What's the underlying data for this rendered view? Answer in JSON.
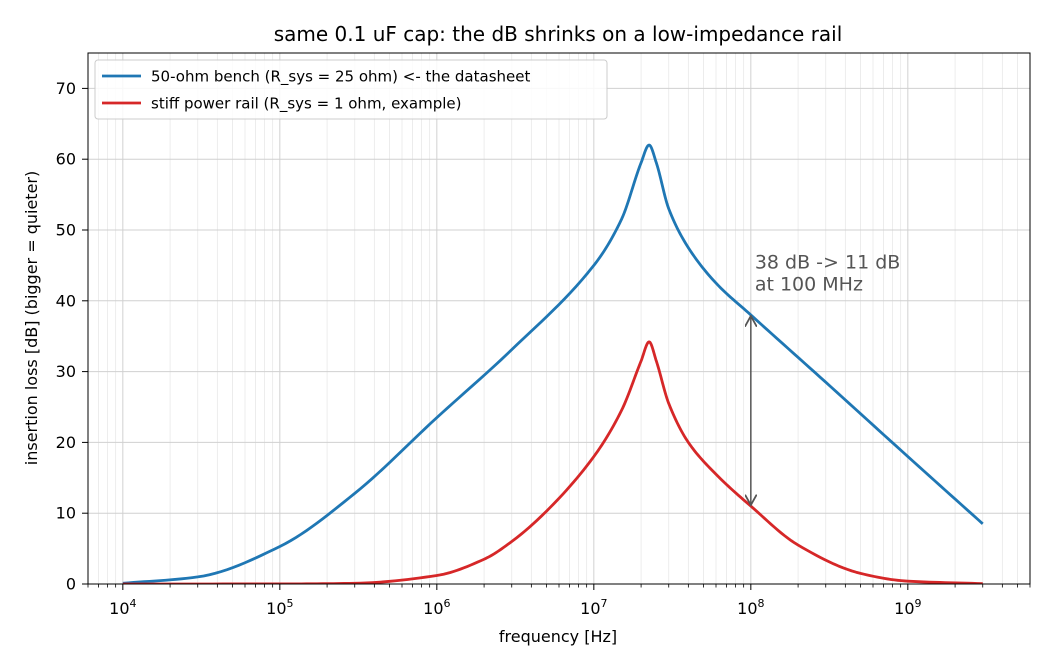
{
  "chart_data": {
    "type": "line",
    "title": "same 0.1 uF cap: the dB shrinks on a low-impedance rail",
    "xlabel": "frequency [Hz]",
    "ylabel": "insertion loss [dB]  (bigger = quieter)",
    "xscale": "log",
    "xlim": [
      6000,
      6000000000
    ],
    "ylim": [
      0,
      75
    ],
    "grid": true,
    "legend_location": "upper-left",
    "xticks": [
      {
        "value": 10000,
        "base": "10",
        "exp": "4"
      },
      {
        "value": 100000,
        "base": "10",
        "exp": "5"
      },
      {
        "value": 1000000,
        "base": "10",
        "exp": "6"
      },
      {
        "value": 10000000,
        "base": "10",
        "exp": "7"
      },
      {
        "value": 100000000,
        "base": "10",
        "exp": "8"
      },
      {
        "value": 1000000000,
        "base": "10",
        "exp": "9"
      }
    ],
    "yticks": [
      0,
      10,
      20,
      30,
      40,
      50,
      60,
      70
    ],
    "series": [
      {
        "name": "50-ohm bench (R_sys = 25 ohm)  <- the datasheet",
        "color": "#1f77b4",
        "x": [
          10000,
          30000,
          100000,
          300000,
          1000000,
          3000000,
          10000000,
          15000000,
          20000000,
          22500000,
          25000000,
          30000000,
          40000000,
          60000000,
          100000000,
          300000000,
          1000000000,
          3000000000
        ],
        "y": [
          0.1,
          1.0,
          5.3,
          12.8,
          23.5,
          33.1,
          45.0,
          51.5,
          59.5,
          62.0,
          59.5,
          53.0,
          47.5,
          42.5,
          38.0,
          28.5,
          18.0,
          8.5
        ]
      },
      {
        "name": "stiff power rail (R_sys = 1 ohm, example)",
        "color": "#d62728",
        "x": [
          10000,
          100000,
          300000,
          1000000,
          2000000,
          3000000,
          5000000,
          10000000,
          15000000,
          20000000,
          22500000,
          25000000,
          30000000,
          40000000,
          60000000,
          100000000,
          200000000,
          500000000,
          1000000000,
          3000000000
        ],
        "y": [
          0,
          0.01,
          0.1,
          1.2,
          3.5,
          6.0,
          10.3,
          18.0,
          24.5,
          31.5,
          34.2,
          31.5,
          25.5,
          20.0,
          15.5,
          11.0,
          5.5,
          1.5,
          0.4,
          0.05
        ]
      }
    ],
    "annotation": {
      "line1": "38 dB -> 11 dB",
      "line2": "at 100 MHz",
      "arrow_x": 100000000,
      "arrow_y_from": 38,
      "arrow_y_to": 11,
      "text_x": 100000000,
      "text_y": 44
    }
  }
}
